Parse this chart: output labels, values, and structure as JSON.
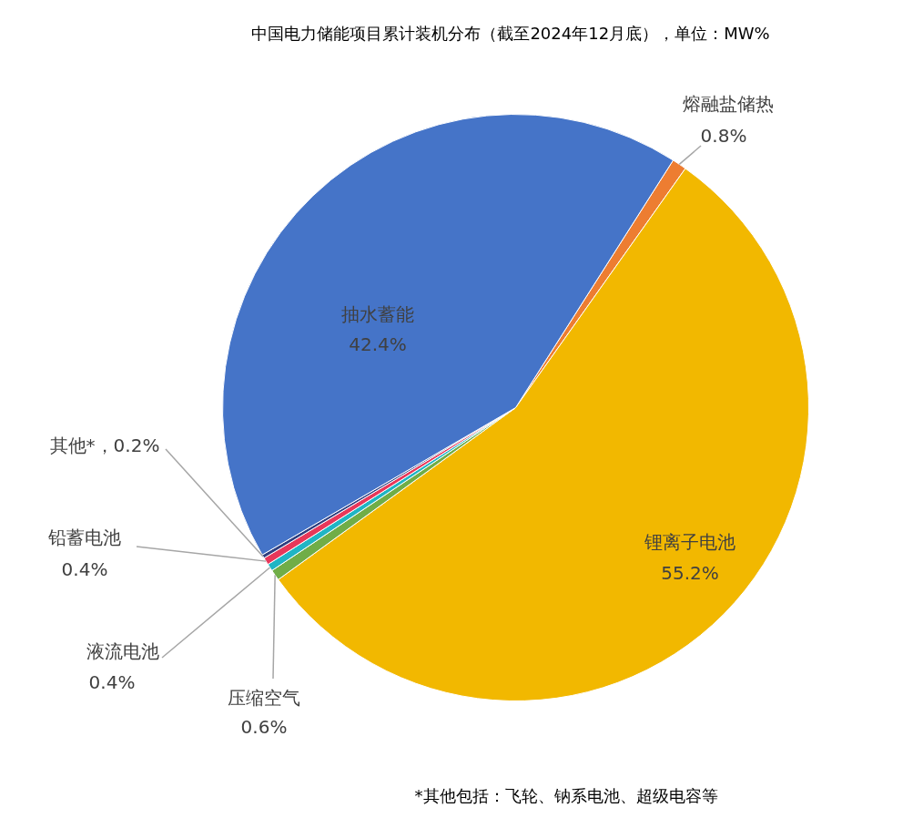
{
  "chart_data": {
    "type": "pie",
    "title": "中国电力储能项目累计装机分布（截至2024年12月底），单位：MW%",
    "categories": [
      "熔融盐储热",
      "锂离子电池",
      "压缩空气",
      "液流电池",
      "铅蓄电池",
      "其他*",
      "抽水蓄能"
    ],
    "values": [
      0.8,
      55.2,
      0.6,
      0.4,
      0.4,
      0.2,
      42.4
    ],
    "colors": [
      "#ed7d31",
      "#f2b800",
      "#70ad47",
      "#1fb5c4",
      "#e8375a",
      "#2f3f7f",
      "#4574c8"
    ],
    "value_labels": [
      "0.8%",
      "55.2%",
      "0.6%",
      "0.4%",
      "0.4%",
      "0.2%",
      "42.4%"
    ],
    "annotations": [
      "*其他包括：飞轮、钠系电池、超级电容等"
    ],
    "legend": false
  }
}
